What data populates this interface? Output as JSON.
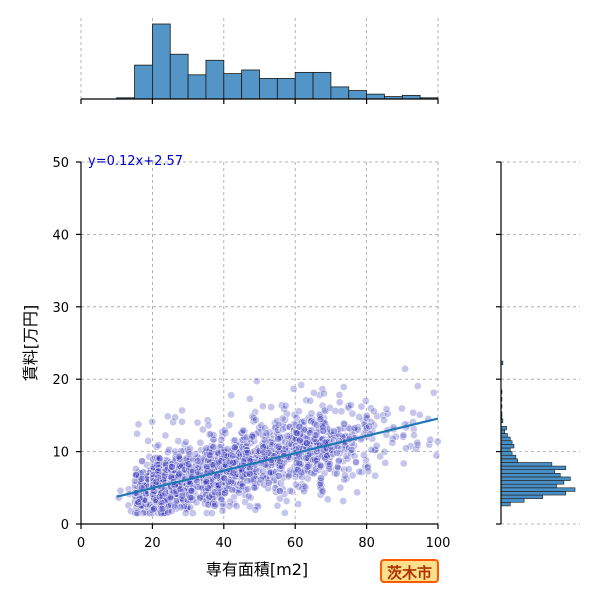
{
  "chart_data": {
    "type": "scatter",
    "xlabel": "専有面積[m2]",
    "ylabel": "賃料[万円]",
    "xlim": [
      0,
      100
    ],
    "ylim": [
      0,
      50
    ],
    "xticks": [
      0,
      20,
      40,
      60,
      80,
      100
    ],
    "yticks": [
      0,
      10,
      20,
      30,
      40,
      50
    ],
    "grid": true,
    "regression": {
      "label": "y=0.12x+2.57",
      "slope": 0.12,
      "intercept": 2.57,
      "x_range": [
        10,
        100
      ],
      "color": "#1f77b4"
    },
    "point_color": "#3333bb",
    "approx_points": 2000,
    "x_hist": {
      "bin_start": 10,
      "bin_width": 5,
      "counts": [
        1,
        28,
        62,
        37,
        20,
        32,
        21,
        24,
        17,
        17,
        22,
        22,
        10,
        7,
        4,
        2,
        3,
        1
      ]
    },
    "y_hist": {
      "bin_start": 0,
      "bin_width": 0.5,
      "bins": [
        [
          2.5,
          10
        ],
        [
          3,
          25
        ],
        [
          3.5,
          45
        ],
        [
          4,
          70
        ],
        [
          4.5,
          80
        ],
        [
          5,
          60
        ],
        [
          5.5,
          68
        ],
        [
          6,
          75
        ],
        [
          6.5,
          64
        ],
        [
          7,
          58
        ],
        [
          7.5,
          70
        ],
        [
          8,
          55
        ],
        [
          8.5,
          18
        ],
        [
          9,
          16
        ],
        [
          9.5,
          12
        ],
        [
          10,
          10
        ],
        [
          10.5,
          14
        ],
        [
          11,
          12
        ],
        [
          11.5,
          10
        ],
        [
          12,
          7
        ],
        [
          12.5,
          4
        ],
        [
          13,
          6
        ],
        [
          14,
          2
        ],
        [
          14.5,
          1
        ],
        [
          15,
          1
        ],
        [
          16,
          1
        ],
        [
          17,
          1
        ],
        [
          18,
          1
        ],
        [
          22,
          2
        ]
      ],
      "color": "#4a8fc4"
    },
    "badge": "茨木市"
  }
}
